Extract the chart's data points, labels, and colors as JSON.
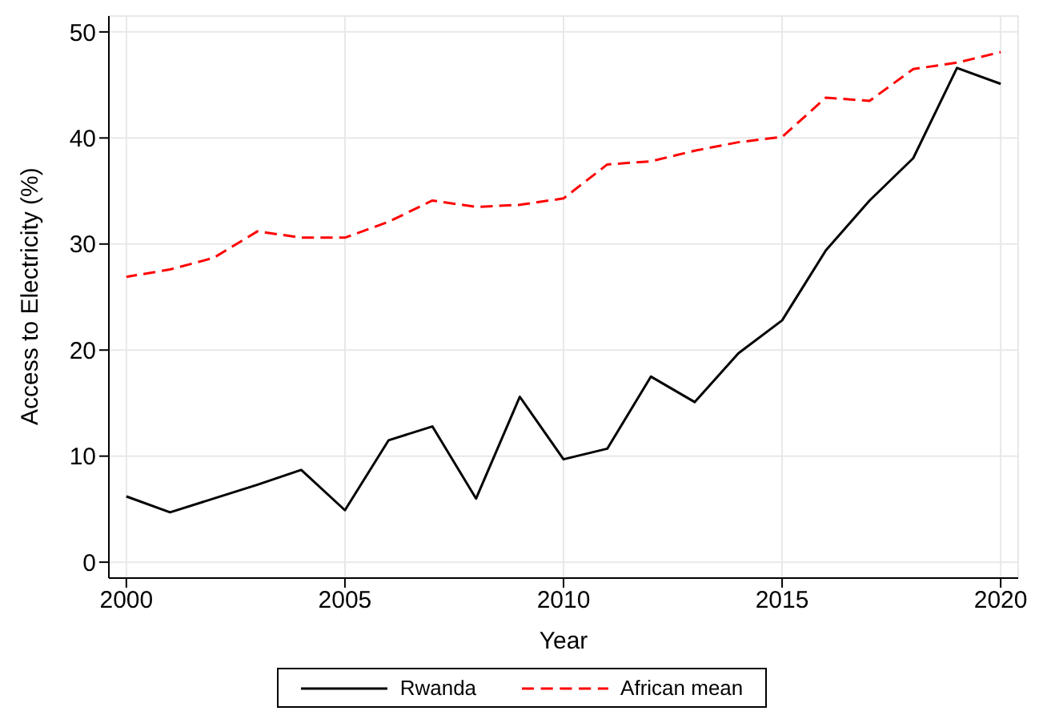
{
  "chart_data": {
    "type": "line",
    "xlabel": "Year",
    "ylabel": "Access to Electricity (%)",
    "x": [
      2000,
      2001,
      2002,
      2003,
      2004,
      2005,
      2006,
      2007,
      2008,
      2009,
      2010,
      2011,
      2012,
      2013,
      2014,
      2015,
      2016,
      2017,
      2018,
      2019,
      2020
    ],
    "series": [
      {
        "name": "Rwanda",
        "color": "#000000",
        "line_style": "solid",
        "values": [
          6.2,
          4.7,
          6.0,
          7.3,
          8.7,
          4.9,
          11.5,
          12.8,
          6.0,
          15.6,
          9.7,
          10.7,
          17.5,
          15.1,
          19.7,
          22.8,
          29.4,
          34.1,
          38.1,
          46.6,
          45.1
        ]
      },
      {
        "name": "African mean",
        "color": "#ff0000",
        "line_style": "dashed",
        "values": [
          26.9,
          27.6,
          28.7,
          31.2,
          30.6,
          30.6,
          32.1,
          34.1,
          33.5,
          33.7,
          34.3,
          37.5,
          37.8,
          38.8,
          39.6,
          40.1,
          43.8,
          43.5,
          46.5,
          47.1,
          48.1
        ]
      }
    ],
    "xlim": [
      1999.6,
      2020.4
    ],
    "xticks": [
      2000,
      2005,
      2010,
      2015,
      2020
    ],
    "ylim": [
      -1.5,
      51.5
    ],
    "yticks": [
      0,
      10,
      20,
      30,
      40,
      50
    ],
    "grid": true,
    "legend": "bottom",
    "marker": "none"
  }
}
